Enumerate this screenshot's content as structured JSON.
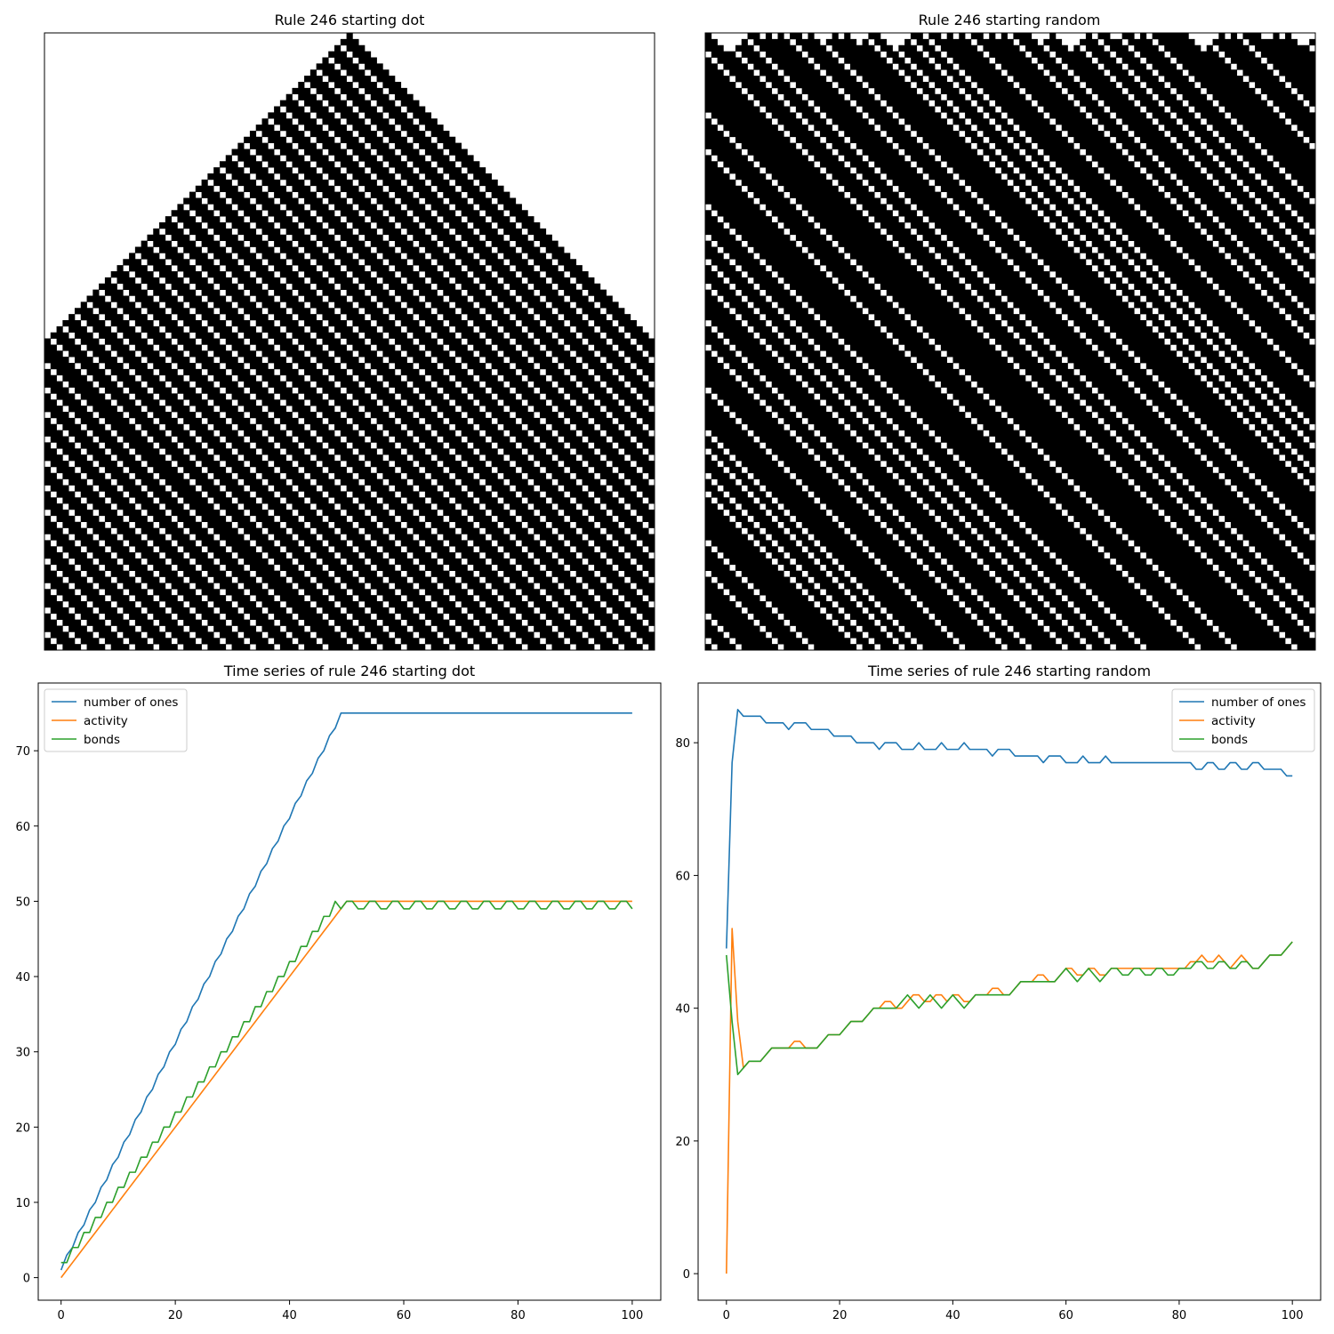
{
  "figure": {
    "panels": [
      {
        "title": "Rule 246 starting dot"
      },
      {
        "title": "Rule 246 starting random"
      },
      {
        "title": "Time series of rule 246 starting dot"
      },
      {
        "title": "Time series of rule 246 starting random"
      }
    ]
  },
  "chart_data": [
    {
      "type": "heatmap",
      "title": "Rule 246 starting dot",
      "rule": 246,
      "initial_condition": "single center cell",
      "colors": {
        "on": "#000000",
        "off": "#ffffff"
      },
      "grid": {
        "rows": 101,
        "cols": 101
      }
    },
    {
      "type": "heatmap",
      "title": "Rule 246 starting random",
      "rule": 246,
      "initial_condition": "random",
      "colors": {
        "on": "#000000",
        "off": "#ffffff"
      },
      "grid": {
        "rows": 101,
        "cols": 101
      }
    },
    {
      "type": "line",
      "title": "Time series of rule 246 starting dot",
      "xlim": [
        -4,
        105
      ],
      "ylim": [
        -3,
        79
      ],
      "xticks": [
        0,
        20,
        40,
        60,
        80,
        100
      ],
      "yticks": [
        0,
        10,
        20,
        30,
        40,
        50,
        60,
        70
      ],
      "legend_position": "upper-left",
      "x": {
        "start": 0,
        "end": 100
      },
      "series": [
        {
          "name": "number of ones",
          "color": "#1f77b4",
          "values": [
            1,
            3,
            4,
            6,
            7,
            9,
            10,
            12,
            13,
            15,
            16,
            18,
            19,
            21,
            22,
            24,
            25,
            27,
            28,
            30,
            31,
            33,
            34,
            36,
            37,
            39,
            40,
            42,
            43,
            45,
            46,
            48,
            49,
            51,
            52,
            54,
            55,
            57,
            58,
            60,
            61,
            63,
            64,
            66,
            67,
            69,
            70,
            72,
            73,
            75,
            75,
            75,
            75,
            75,
            75,
            75,
            75,
            75,
            75,
            75,
            75,
            75,
            75,
            75,
            75,
            75,
            75,
            75,
            75,
            75,
            75,
            75,
            75,
            75,
            75,
            75,
            75,
            75,
            75,
            75,
            75,
            75,
            75,
            75,
            75,
            75,
            75,
            75,
            75,
            75,
            75,
            75,
            75,
            75,
            75,
            75,
            75,
            75,
            75,
            75,
            75
          ]
        },
        {
          "name": "activity",
          "color": "#ff7f0e",
          "values": [
            0,
            1,
            2,
            3,
            4,
            5,
            6,
            7,
            8,
            9,
            10,
            11,
            12,
            13,
            14,
            15,
            16,
            17,
            18,
            19,
            20,
            21,
            22,
            23,
            24,
            25,
            26,
            27,
            28,
            29,
            30,
            31,
            32,
            33,
            34,
            35,
            36,
            37,
            38,
            39,
            40,
            41,
            42,
            43,
            44,
            45,
            46,
            47,
            48,
            49,
            50,
            50,
            50,
            50,
            50,
            50,
            50,
            50,
            50,
            50,
            50,
            50,
            50,
            50,
            50,
            50,
            50,
            50,
            50,
            50,
            50,
            50,
            50,
            50,
            50,
            50,
            50,
            50,
            50,
            50,
            50,
            50,
            50,
            50,
            50,
            50,
            50,
            50,
            50,
            50,
            50,
            50,
            50,
            50,
            50,
            50,
            50,
            50,
            50,
            50,
            50
          ]
        },
        {
          "name": "bonds",
          "color": "#2ca02c",
          "values": [
            2,
            2,
            4,
            4,
            6,
            6,
            8,
            8,
            10,
            10,
            12,
            12,
            14,
            14,
            16,
            16,
            18,
            18,
            20,
            20,
            22,
            22,
            24,
            24,
            26,
            26,
            28,
            28,
            30,
            30,
            32,
            32,
            34,
            34,
            36,
            36,
            38,
            38,
            40,
            40,
            42,
            42,
            44,
            44,
            46,
            46,
            48,
            48,
            50,
            49,
            50,
            50,
            49,
            49,
            50,
            50,
            49,
            49,
            50,
            50,
            49,
            49,
            50,
            50,
            49,
            49,
            50,
            50,
            49,
            49,
            50,
            50,
            49,
            49,
            50,
            50,
            49,
            49,
            50,
            50,
            49,
            49,
            50,
            50,
            49,
            49,
            50,
            50,
            49,
            49,
            50,
            50,
            49,
            49,
            50,
            50,
            49,
            49,
            50,
            50,
            49
          ]
        }
      ]
    },
    {
      "type": "line",
      "title": "Time series of rule 246 starting random",
      "xlim": [
        -5,
        105
      ],
      "ylim": [
        -4,
        89
      ],
      "xticks": [
        0,
        20,
        40,
        60,
        80,
        100
      ],
      "yticks": [
        0,
        20,
        40,
        60,
        80
      ],
      "legend_position": "upper-right",
      "x": {
        "start": 0,
        "end": 100
      },
      "series": [
        {
          "name": "number of ones",
          "color": "#1f77b4",
          "values": [
            49,
            77,
            85,
            84,
            84,
            84,
            84,
            83,
            83,
            83,
            83,
            82,
            83,
            83,
            83,
            82,
            82,
            82,
            82,
            81,
            81,
            81,
            81,
            80,
            80,
            80,
            80,
            79,
            80,
            80,
            80,
            79,
            79,
            79,
            80,
            79,
            79,
            79,
            80,
            79,
            79,
            79,
            80,
            79,
            79,
            79,
            79,
            78,
            79,
            79,
            79,
            78,
            78,
            78,
            78,
            78,
            77,
            78,
            78,
            78,
            77,
            77,
            77,
            78,
            77,
            77,
            77,
            78,
            77,
            77,
            77,
            77,
            77,
            77,
            77,
            77,
            77,
            77,
            77,
            77,
            77,
            77,
            77,
            76,
            76,
            77,
            77,
            76,
            76,
            77,
            77,
            76,
            76,
            77,
            77,
            76,
            76,
            76,
            76,
            75,
            75
          ]
        },
        {
          "name": "activity",
          "color": "#ff7f0e",
          "values": [
            0,
            52,
            38,
            31,
            32,
            32,
            32,
            33,
            34,
            34,
            34,
            34,
            35,
            35,
            34,
            34,
            34,
            35,
            36,
            36,
            36,
            37,
            38,
            38,
            38,
            39,
            40,
            40,
            41,
            41,
            40,
            40,
            41,
            42,
            42,
            41,
            41,
            42,
            42,
            41,
            42,
            42,
            41,
            41,
            42,
            42,
            42,
            43,
            43,
            42,
            42,
            43,
            44,
            44,
            44,
            45,
            45,
            44,
            44,
            45,
            46,
            46,
            45,
            45,
            46,
            46,
            45,
            45,
            46,
            46,
            46,
            46,
            46,
            46,
            46,
            46,
            46,
            46,
            46,
            46,
            46,
            46,
            47,
            47,
            48,
            47,
            47,
            48,
            47,
            46,
            47,
            48,
            47,
            46,
            46,
            47,
            48,
            48,
            48,
            49,
            50
          ]
        },
        {
          "name": "bonds",
          "color": "#2ca02c",
          "values": [
            48,
            38,
            30,
            31,
            32,
            32,
            32,
            33,
            34,
            34,
            34,
            34,
            34,
            34,
            34,
            34,
            34,
            35,
            36,
            36,
            36,
            37,
            38,
            38,
            38,
            39,
            40,
            40,
            40,
            40,
            40,
            41,
            42,
            41,
            40,
            41,
            42,
            41,
            40,
            41,
            42,
            41,
            40,
            41,
            42,
            42,
            42,
            42,
            42,
            42,
            42,
            43,
            44,
            44,
            44,
            44,
            44,
            44,
            44,
            45,
            46,
            45,
            44,
            45,
            46,
            45,
            44,
            45,
            46,
            46,
            45,
            45,
            46,
            46,
            45,
            45,
            46,
            46,
            45,
            45,
            46,
            46,
            46,
            47,
            47,
            46,
            46,
            47,
            47,
            46,
            46,
            47,
            47,
            46,
            46,
            47,
            48,
            48,
            48,
            49,
            50
          ]
        }
      ]
    }
  ]
}
